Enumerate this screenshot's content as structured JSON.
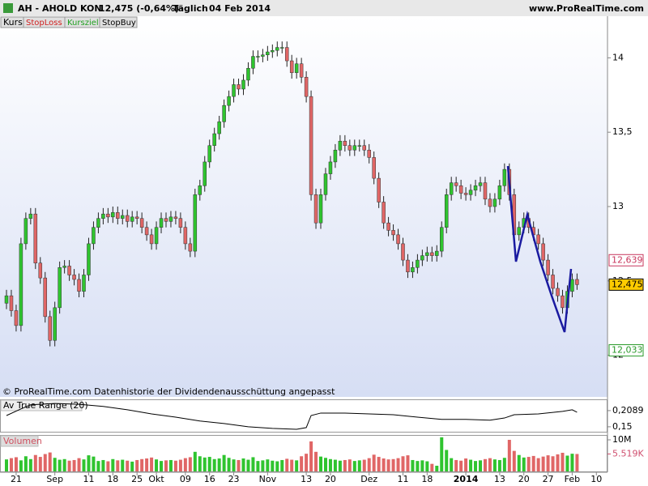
{
  "header": {
    "symbol": "AH - AHOLD KON",
    "quote": "12,475 (-0,64%)",
    "period": "Täglich",
    "date": "04 Feb 2014",
    "site": "www.ProRealTime.com"
  },
  "tabs": [
    "Kurs",
    "StopLoss",
    "Kursziel",
    "StopBuy"
  ],
  "footer_note": "© ProRealTime.com Datenhistorie der Dividendenausschüttung angepasst",
  "chart_data": [
    {
      "type": "candlestick",
      "up_color": "#2fc42f",
      "down_color": "#e06666",
      "xlim": [
        -1.34,
        124.3
      ],
      "ylim": [
        11.72,
        14.28
      ],
      "yticks": [
        14,
        {
          "value": 13.5,
          "label": "13,5"
        },
        13,
        {
          "value": 12.5,
          "label": "12,5"
        },
        12
      ],
      "open": [
        12.35,
        12.4,
        12.3,
        12.2,
        12.75,
        12.92,
        12.95,
        12.62,
        12.52,
        12.26,
        12.1,
        12.32,
        12.59,
        12.6,
        12.54,
        12.51,
        12.43,
        12.54,
        12.75,
        12.86,
        12.92,
        12.95,
        12.93,
        12.96,
        12.92,
        12.94,
        12.9,
        12.93,
        12.92,
        12.86,
        12.81,
        12.75,
        12.86,
        12.92,
        12.9,
        12.93,
        12.92,
        12.86,
        12.75,
        12.7,
        13.08,
        13.14,
        13.3,
        13.41,
        13.49,
        13.57,
        13.68,
        13.74,
        13.82,
        13.79,
        13.85,
        13.93,
        14.01,
        14.01,
        14.02,
        14.04,
        14.05,
        14.07,
        14.07,
        13.98,
        13.9,
        13.96,
        13.87,
        13.74,
        13.08,
        12.89,
        13.08,
        13.22,
        13.3,
        13.38,
        13.44,
        13.41,
        13.38,
        13.41,
        13.41,
        13.38,
        13.33,
        13.19,
        13.03,
        12.89,
        12.84,
        12.81,
        12.75,
        12.64,
        12.56,
        12.59,
        12.64,
        12.67,
        12.69,
        12.67,
        12.7,
        12.86,
        13.08,
        13.16,
        13.14,
        13.09,
        13.08,
        13.11,
        13.14,
        13.16,
        13.05,
        13.0,
        13.05,
        13.14,
        13.25,
        13.08,
        12.81,
        12.86,
        12.92,
        12.86,
        12.81,
        12.75,
        12.64,
        12.54,
        12.45,
        12.4,
        12.32,
        12.43,
        12.51
      ],
      "high": [
        12.44,
        12.44,
        12.34,
        12.79,
        12.96,
        12.99,
        12.99,
        12.66,
        12.56,
        12.3,
        12.36,
        12.63,
        12.64,
        12.64,
        12.58,
        12.55,
        12.58,
        12.79,
        12.9,
        12.96,
        12.99,
        12.99,
        13.0,
        13.0,
        12.98,
        12.98,
        12.97,
        12.97,
        12.96,
        12.9,
        12.85,
        12.9,
        12.96,
        12.96,
        12.97,
        12.97,
        12.96,
        12.9,
        12.79,
        13.12,
        13.18,
        13.34,
        13.45,
        13.53,
        13.61,
        13.72,
        13.78,
        13.86,
        13.86,
        13.89,
        13.97,
        14.05,
        14.05,
        14.06,
        14.08,
        14.09,
        14.11,
        14.11,
        14.11,
        14.02,
        14.0,
        14.0,
        13.91,
        13.78,
        13.12,
        13.12,
        13.26,
        13.34,
        13.42,
        13.48,
        13.48,
        13.45,
        13.45,
        13.45,
        13.45,
        13.42,
        13.37,
        13.23,
        13.07,
        12.93,
        12.88,
        12.85,
        12.79,
        12.68,
        12.63,
        12.68,
        12.71,
        12.73,
        12.73,
        12.74,
        12.9,
        13.12,
        13.2,
        13.2,
        13.18,
        13.13,
        13.15,
        13.18,
        13.2,
        13.2,
        13.09,
        13.09,
        13.18,
        13.29,
        13.29,
        13.12,
        12.9,
        12.96,
        12.96,
        12.9,
        12.85,
        12.79,
        12.68,
        12.58,
        12.49,
        12.44,
        12.47,
        12.55,
        12.55
      ],
      "low": [
        12.31,
        12.26,
        12.16,
        12.16,
        12.71,
        12.88,
        12.58,
        12.48,
        12.22,
        12.06,
        12.06,
        12.28,
        12.55,
        12.5,
        12.47,
        12.39,
        12.39,
        12.5,
        12.71,
        12.82,
        12.88,
        12.89,
        12.89,
        12.88,
        12.88,
        12.86,
        12.86,
        12.88,
        12.82,
        12.77,
        12.71,
        12.71,
        12.82,
        12.86,
        12.86,
        12.88,
        12.82,
        12.71,
        12.66,
        12.66,
        13.04,
        13.1,
        13.26,
        13.37,
        13.45,
        13.53,
        13.64,
        13.7,
        13.75,
        13.75,
        13.81,
        13.89,
        13.97,
        13.97,
        13.98,
        14.0,
        14.01,
        14.03,
        13.94,
        13.86,
        13.86,
        13.83,
        13.7,
        13.04,
        12.85,
        12.85,
        13.04,
        13.18,
        13.26,
        13.34,
        13.37,
        13.34,
        13.34,
        13.37,
        13.34,
        13.29,
        13.15,
        12.99,
        12.85,
        12.8,
        12.77,
        12.71,
        12.6,
        12.52,
        12.52,
        12.55,
        12.6,
        12.63,
        12.63,
        12.63,
        12.66,
        12.82,
        13.04,
        13.1,
        13.05,
        13.04,
        13.04,
        13.07,
        13.1,
        13.01,
        12.96,
        12.96,
        13.01,
        13.1,
        13.04,
        12.77,
        12.77,
        12.82,
        12.82,
        12.77,
        12.71,
        12.6,
        12.5,
        12.41,
        12.36,
        12.28,
        12.28,
        12.39,
        12.44
      ],
      "close": [
        12.4,
        12.3,
        12.2,
        12.75,
        12.92,
        12.95,
        12.62,
        12.52,
        12.26,
        12.1,
        12.32,
        12.59,
        12.6,
        12.54,
        12.51,
        12.43,
        12.54,
        12.75,
        12.86,
        12.92,
        12.95,
        12.93,
        12.96,
        12.92,
        12.94,
        12.9,
        12.93,
        12.92,
        12.86,
        12.81,
        12.75,
        12.86,
        12.92,
        12.9,
        12.93,
        12.92,
        12.86,
        12.75,
        12.7,
        13.08,
        13.14,
        13.3,
        13.41,
        13.49,
        13.57,
        13.68,
        13.74,
        13.82,
        13.79,
        13.85,
        13.93,
        14.01,
        14.01,
        14.02,
        14.04,
        14.05,
        14.07,
        14.07,
        13.98,
        13.9,
        13.96,
        13.87,
        13.74,
        13.08,
        12.89,
        13.08,
        13.22,
        13.3,
        13.38,
        13.44,
        13.41,
        13.38,
        13.41,
        13.41,
        13.38,
        13.33,
        13.19,
        13.03,
        12.89,
        12.84,
        12.81,
        12.75,
        12.64,
        12.56,
        12.59,
        12.64,
        12.67,
        12.69,
        12.67,
        12.7,
        12.86,
        13.08,
        13.16,
        13.14,
        13.09,
        13.08,
        13.11,
        13.14,
        13.16,
        13.05,
        13.0,
        13.05,
        13.14,
        13.25,
        13.08,
        12.81,
        12.86,
        12.92,
        12.86,
        12.81,
        12.75,
        12.64,
        12.54,
        12.45,
        12.4,
        12.32,
        12.43,
        12.51,
        12.475
      ],
      "price_markers": [
        {
          "value": 12.639,
          "label": "12,639",
          "color": "#c8385e",
          "fill": "#ffffff"
        },
        {
          "value": 12.475,
          "label": "12,475",
          "color": "#000000",
          "fill": "#ffcc00"
        },
        {
          "value": 12.033,
          "label": "12,033",
          "color": "#2a9a2a",
          "fill": "#ffffff"
        }
      ]
    },
    {
      "type": "line",
      "title": "Av True Range (20)",
      "color": "#000000",
      "xlim": [
        -1.34,
        124.3
      ],
      "ylim": [
        0.132,
        0.247
      ],
      "yticks": [
        {
          "value": 0.2089,
          "label": "0,2089"
        },
        {
          "value": 0.15,
          "label": "0,15"
        }
      ],
      "x": [
        0,
        3,
        5,
        10,
        15,
        20,
        25,
        30,
        35,
        40,
        45,
        50,
        55,
        60,
        62,
        63,
        65,
        70,
        75,
        80,
        85,
        90,
        95,
        100,
        103,
        105,
        110,
        115,
        117,
        118
      ],
      "values": [
        0.191,
        0.215,
        0.23,
        0.235,
        0.232,
        0.224,
        0.212,
        0.197,
        0.185,
        0.171,
        0.162,
        0.15,
        0.144,
        0.141,
        0.147,
        0.191,
        0.2,
        0.2,
        0.197,
        0.194,
        0.185,
        0.177,
        0.177,
        0.174,
        0.182,
        0.194,
        0.197,
        0.206,
        0.212,
        0.203
      ]
    },
    {
      "type": "bar",
      "title": "Volumen",
      "xlim": [
        -1.34,
        124.3
      ],
      "ylim": [
        0,
        11280
      ],
      "yticks": [
        {
          "value": 10000,
          "label": "10M"
        }
      ],
      "value_marker": {
        "value": 5519,
        "label": "5.519K"
      },
      "xticks": [
        {
          "value": 2,
          "label": "21"
        },
        {
          "value": 10,
          "label": "Sep"
        },
        {
          "value": 17,
          "label": "11"
        },
        {
          "value": 22,
          "label": "18"
        },
        {
          "value": 27,
          "label": "25"
        },
        {
          "value": 31,
          "label": "Okt"
        },
        {
          "value": 37,
          "label": "09"
        },
        {
          "value": 42,
          "label": "16"
        },
        {
          "value": 47,
          "label": "23"
        },
        {
          "value": 54,
          "label": "Nov"
        },
        {
          "value": 62,
          "label": "13"
        },
        {
          "value": 67,
          "label": "20"
        },
        {
          "value": 75,
          "label": "Dez"
        },
        {
          "value": 82,
          "label": "11"
        },
        {
          "value": 87,
          "label": "18"
        },
        {
          "value": 95,
          "label": "2014"
        },
        {
          "value": 102,
          "label": "13"
        },
        {
          "value": 107,
          "label": "20"
        },
        {
          "value": 112,
          "label": "27"
        },
        {
          "value": 117,
          "label": "Feb"
        },
        {
          "value": 122,
          "label": "10"
        }
      ],
      "values": [
        3800,
        4200,
        4500,
        3500,
        4800,
        3900,
        5200,
        4600,
        5500,
        6000,
        4300,
        3700,
        3900,
        3400,
        3600,
        4200,
        3800,
        5100,
        4700,
        3300,
        3600,
        3200,
        3900,
        3500,
        3700,
        3400,
        3100,
        3600,
        3900,
        4100,
        4400,
        3800,
        3300,
        3500,
        3600,
        3400,
        3700,
        4200,
        4500,
        6200,
        4800,
        4400,
        4600,
        3900,
        4100,
        5200,
        4300,
        3800,
        3600,
        4100,
        3700,
        4500,
        3300,
        3500,
        3800,
        3400,
        3200,
        3600,
        4000,
        3700,
        3500,
        4800,
        5600,
        9500,
        6200,
        4700,
        4300,
        3900,
        3700,
        3400,
        3600,
        3800,
        3300,
        3500,
        3700,
        4200,
        5300,
        4600,
        4100,
        3800,
        3900,
        4200,
        4800,
        5100,
        3600,
        3300,
        3500,
        3200,
        2400,
        1800,
        10800,
        6800,
        4200,
        3600,
        3400,
        4100,
        3700,
        3300,
        3500,
        3900,
        4200,
        3800,
        3600,
        4300,
        10000,
        6500,
        5200,
        4400,
        4600,
        4900,
        4200,
        4700,
        5100,
        4800,
        5400,
        5900,
        5000,
        5600,
        5519
      ]
    }
  ]
}
